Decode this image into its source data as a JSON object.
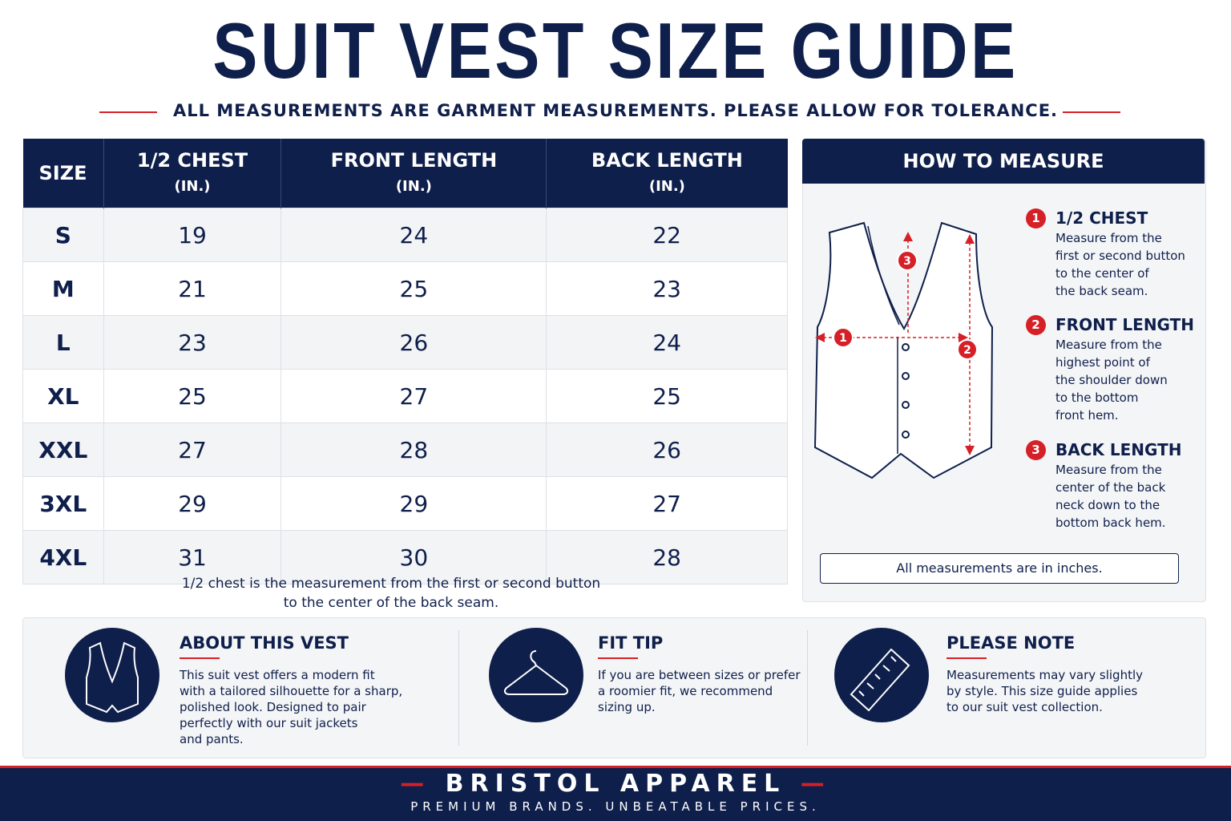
{
  "header": {
    "title": "SUIT VEST SIZE GUIDE",
    "subtitle": "ALL MEASUREMENTS ARE GARMENT MEASUREMENTS. PLEASE ALLOW FOR TOLERANCE."
  },
  "table": {
    "columns": [
      {
        "name": "SIZE"
      },
      {
        "name": "1/2 CHEST",
        "unit": "(IN.)"
      },
      {
        "name": "FRONT LENGTH",
        "unit": "(IN.)"
      },
      {
        "name": "BACK LENGTH",
        "unit": "(IN.)"
      }
    ],
    "rows": [
      [
        "S",
        19,
        24,
        22
      ],
      [
        "M",
        21,
        25,
        23
      ],
      [
        "L",
        23,
        26,
        24
      ],
      [
        "XL",
        25,
        27,
        25
      ],
      [
        "XXL",
        27,
        28,
        26
      ],
      [
        "3XL",
        29,
        29,
        27
      ],
      [
        "4XL",
        31,
        30,
        28
      ]
    ],
    "note": [
      "1/2 chest is the measurement from the first or second button",
      "to the center of the back seam."
    ]
  },
  "measure": {
    "title": "HOW TO MEASURE",
    "steps": [
      {
        "number": 1,
        "title": "1/2 CHEST",
        "lines": [
          "Measure from the",
          "first or second button",
          "to the center of",
          "the back seam."
        ]
      },
      {
        "number": 2,
        "title": "FRONT LENGTH",
        "lines": [
          "Measure from the",
          "highest point of",
          "the shoulder down",
          "to the bottom",
          "front hem."
        ]
      },
      {
        "number": 3,
        "title": "BACK LENGTH",
        "lines": [
          "Measure from the",
          "center of the back",
          "neck down to the",
          "bottom back hem."
        ]
      }
    ],
    "footnote": "All measurements are in inches."
  },
  "info": [
    {
      "title": "ABOUT THIS VEST",
      "lines": [
        "This suit vest offers a modern fit",
        "with a tailored silhouette for a sharp,",
        "polished look. Designed to pair",
        "perfectly with our suit jackets",
        "and pants."
      ]
    },
    {
      "title": "FIT TIP",
      "lines": [
        "If you are between sizes or prefer",
        "a roomier fit, we recommend",
        "sizing up."
      ]
    },
    {
      "title": "PLEASE NOTE",
      "lines": [
        "Measurements may vary slightly",
        "by style. This size guide applies",
        "to our suit vest collection."
      ]
    }
  ],
  "footer": {
    "brand": "BRISTOL APPAREL",
    "tagline": "PREMIUM BRANDS. UNBEATABLE PRICES."
  }
}
